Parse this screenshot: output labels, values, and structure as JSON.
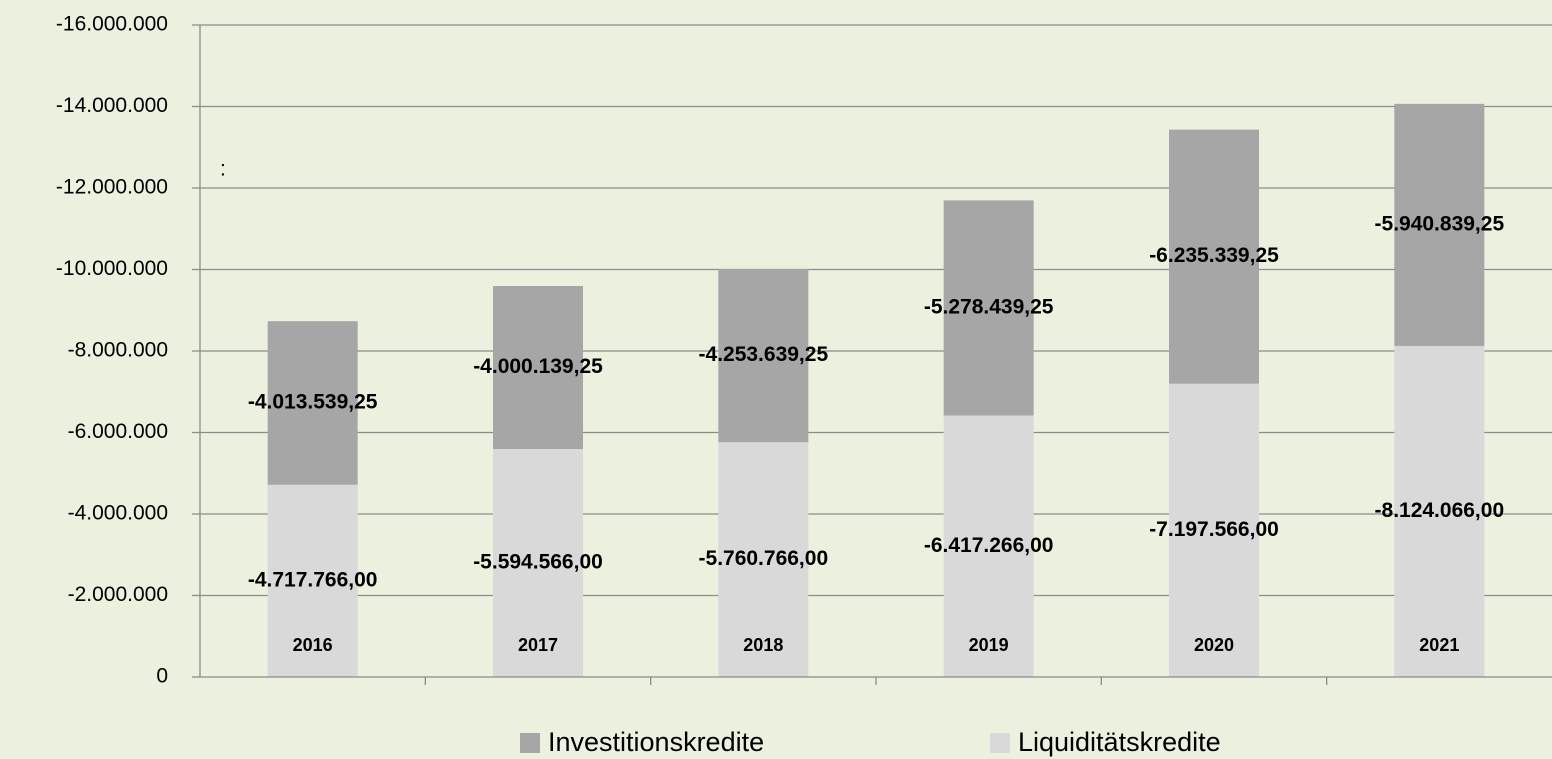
{
  "chart_data": {
    "type": "stacked_bar",
    "categories": [
      "2016",
      "2017",
      "2018",
      "2019",
      "2020",
      "2021"
    ],
    "series": [
      {
        "name": "Liquiditätskredite",
        "color": "#d9d9d9",
        "values": [
          -4717766,
          -5594566,
          -5760766,
          -6417266,
          -7197566,
          -8124066
        ],
        "value_labels": [
          "-4.717.766,00",
          "-5.594.566,00",
          "-5.760.766,00",
          "-6.417.266,00",
          "-7.197.566,00",
          "-8.124.066,00"
        ]
      },
      {
        "name": "Investitionskredite",
        "color": "#a6a6a6",
        "values": [
          -4013539.25,
          -4000139.25,
          -4253639.25,
          -5278439.25,
          -6235339.25,
          -5940839.25
        ],
        "value_labels": [
          "-4.013.539,25",
          "-4.000.139,25",
          "-4.253.639,25",
          "-5.278.439,25",
          "-6.235.339,25",
          "-5.940.839,25"
        ]
      }
    ],
    "ylim": [
      0,
      -16000000
    ],
    "yticks": [
      0,
      {
        "value": -2000000,
        "label": "-2.000.000"
      },
      {
        "value": -4000000,
        "label": "-4.000.000"
      },
      {
        "value": -6000000,
        "label": "-6.000.000"
      },
      {
        "value": -8000000,
        "label": "-8.000.000"
      },
      {
        "value": -10000000,
        "label": "-10.000.000"
      },
      {
        "value": -12000000,
        "label": "-12.000.000"
      },
      {
        "value": -14000000,
        "label": "-14.000.000"
      },
      {
        "value": -16000000,
        "label": "-16.000.000"
      }
    ],
    "grid": true,
    "annotations": [
      ":"
    ],
    "legend": "bottom"
  }
}
